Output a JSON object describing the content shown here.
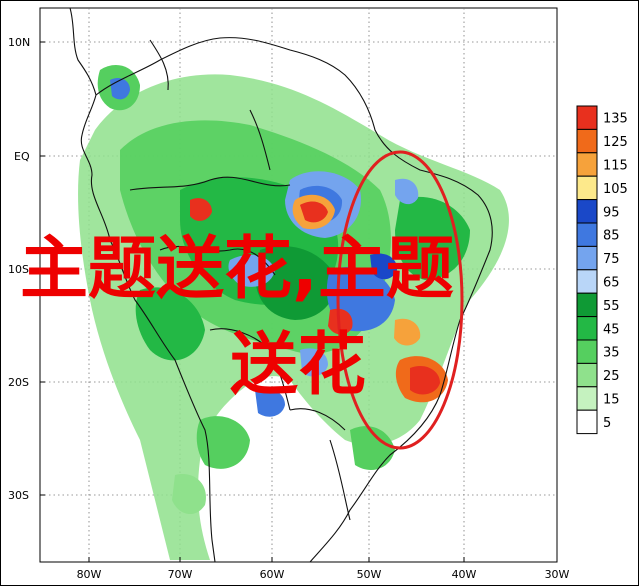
{
  "map": {
    "lat_labels": [
      "10N",
      "EQ",
      "10S",
      "20S",
      "30S"
    ],
    "lon_labels": [
      "80W",
      "70W",
      "60W",
      "50W",
      "40W",
      "30W"
    ]
  },
  "overlay": {
    "line1": "主题送花,主题",
    "line2": "送花"
  },
  "colorbar": {
    "levels": [
      "135",
      "125",
      "115",
      "105",
      "95",
      "85",
      "75",
      "65",
      "55",
      "45",
      "35",
      "25",
      "15",
      "5"
    ],
    "colors": [
      "#e8301e",
      "#f06a1a",
      "#f6a23b",
      "#fde98b",
      "#1a48c8",
      "#3f78e0",
      "#74a4ee",
      "#b9d6f8",
      "#0f9a35",
      "#23b845",
      "#55cf5f",
      "#8fe18c",
      "#c5f2bf",
      "#ffffff"
    ]
  },
  "highlight": {
    "color": "#e02020"
  }
}
